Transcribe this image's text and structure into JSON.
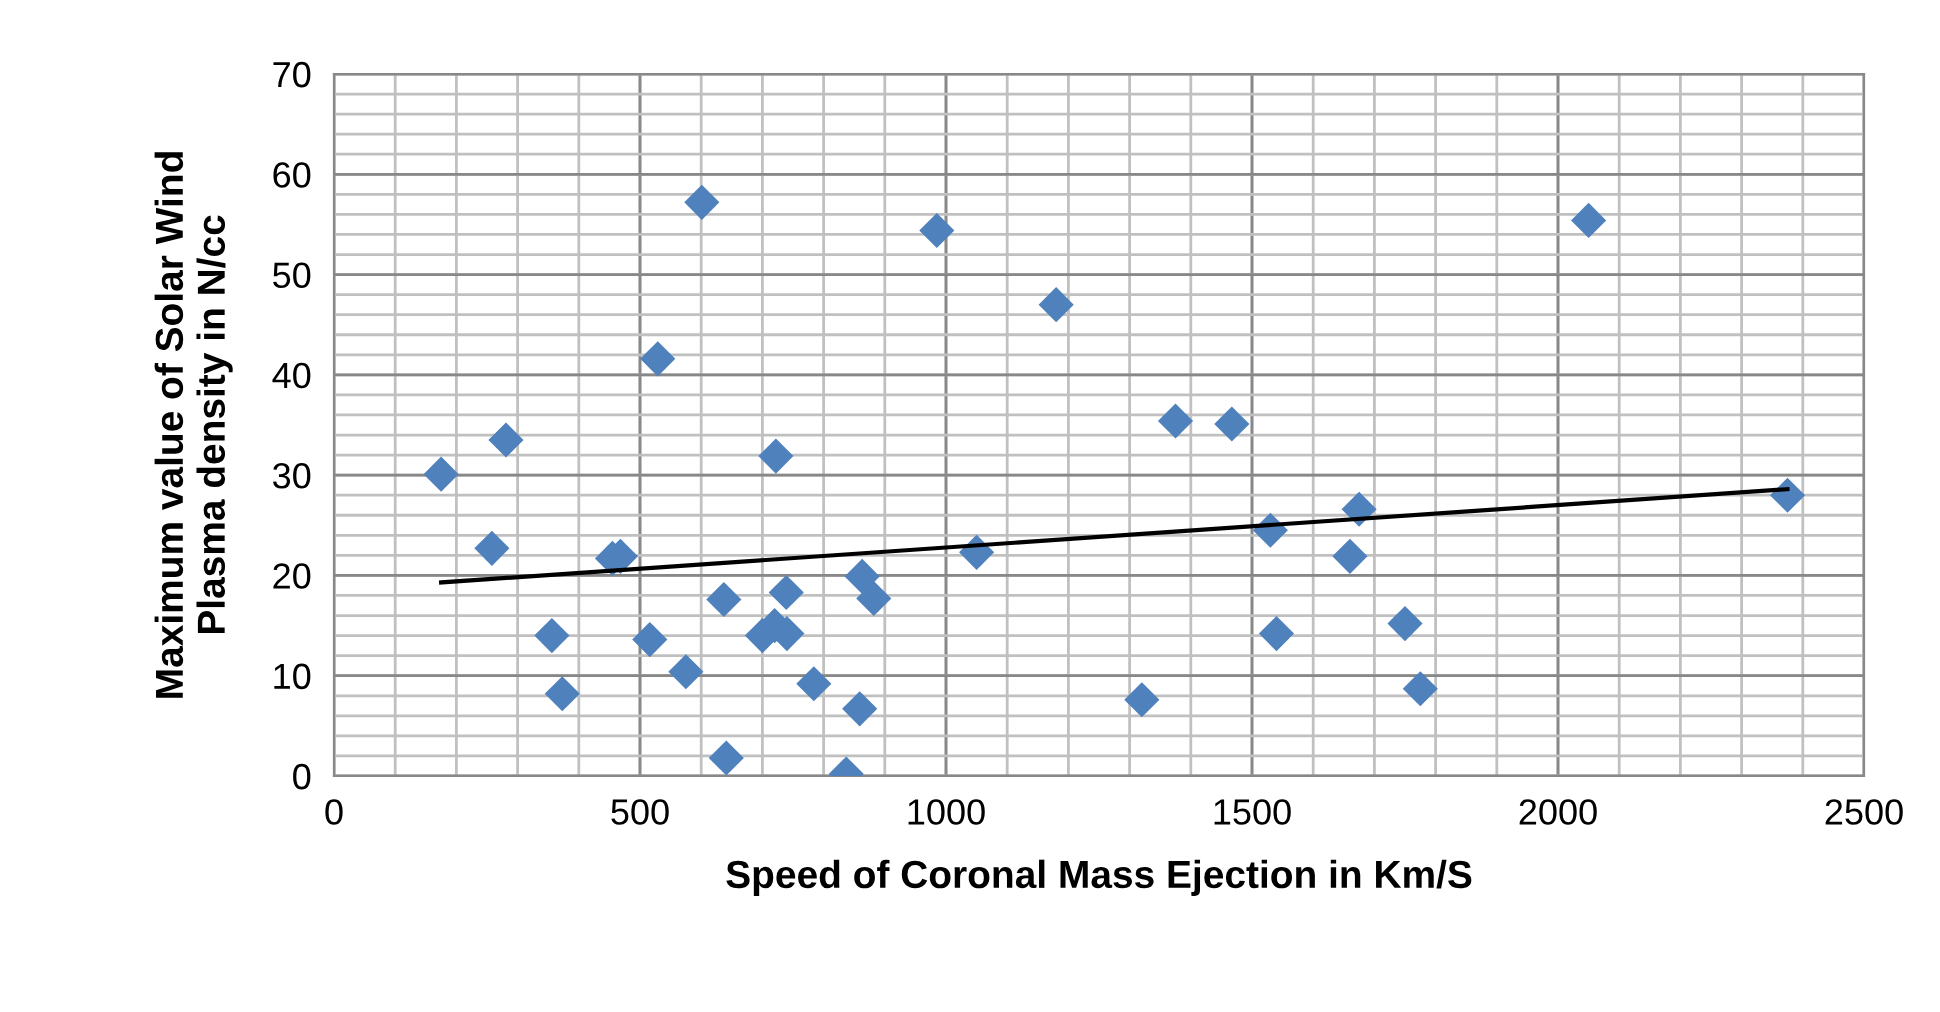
{
  "chart_data": {
    "type": "scatter",
    "xlabel": "Speed of Coronal Mass Ejection in Km/S",
    "ylabel": "Maximum value of Solar Wind\nPlasma density in N/cc",
    "series": [
      {
        "color": "#4f81bd",
        "marker": "diamond",
        "x": [
          175,
          281,
          258,
          356,
          373,
          455,
          468,
          516,
          529,
          575,
          601,
          637,
          641,
          700,
          720,
          740,
          722,
          739,
          784,
          837,
          859,
          863,
          882,
          985,
          1050,
          1180,
          1320,
          1375,
          1467,
          1530,
          1540,
          1660,
          1675,
          1750,
          1775,
          2050,
          2375
        ],
        "values": [
          30.1,
          33.5,
          22.7,
          14.0,
          8.2,
          21.7,
          21.9,
          13.6,
          41.6,
          10.4,
          57.2,
          17.6,
          1.8,
          14.0,
          15.0,
          14.2,
          31.9,
          18.3,
          9.2,
          0.2,
          6.7,
          19.9,
          17.7,
          54.4,
          22.3,
          47.0,
          7.6,
          35.4,
          35.1,
          24.5,
          14.2,
          21.9,
          26.6,
          15.2,
          8.7,
          55.4,
          28.0
        ]
      },
      {
        "type": "line",
        "color": "#000000",
        "marker": "none",
        "line_style": "solid",
        "x": [
          175,
          2375
        ],
        "values": [
          19.3,
          28.6
        ]
      }
    ],
    "xlim": [
      0,
      2500
    ],
    "xticks": [
      0,
      500,
      1000,
      1500,
      2000,
      2500
    ],
    "ylim": [
      0,
      70
    ],
    "yticks": [
      0,
      10,
      20,
      30,
      40,
      50,
      60,
      70
    ],
    "grid": true
  }
}
